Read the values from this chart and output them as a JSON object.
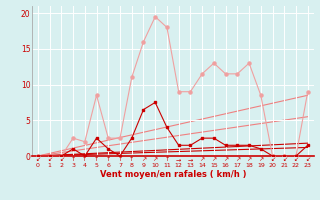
{
  "background_color": "#d8f0f0",
  "grid_color": "#ffffff",
  "x_label": "Vent moyen/en rafales ( km/h )",
  "x_ticks": [
    0,
    1,
    2,
    3,
    4,
    5,
    6,
    7,
    8,
    9,
    10,
    11,
    12,
    13,
    14,
    15,
    16,
    17,
    18,
    19,
    20,
    21,
    22,
    23
  ],
  "ylim": [
    0,
    21
  ],
  "y_ticks": [
    0,
    5,
    10,
    15,
    20
  ],
  "xlim": [
    -0.5,
    23.5
  ],
  "line_light_markers": [
    0,
    0,
    0,
    2.5,
    2,
    8.5,
    2.5,
    2.5,
    11,
    16,
    19.5,
    18,
    9,
    9,
    11.5,
    13,
    11.5,
    11.5,
    13,
    8.5,
    0,
    0,
    0,
    9
  ],
  "line_light_color": "#f0a0a0",
  "line_dark_markers": [
    0,
    0,
    0,
    1,
    0,
    2.5,
    1,
    0,
    2.5,
    6.5,
    7.5,
    4,
    1.5,
    1.5,
    2.5,
    2.5,
    1.5,
    1.5,
    1.5,
    1,
    0,
    0,
    0,
    1.5
  ],
  "line_dark_color": "#cc0000",
  "trend_lines": [
    {
      "x": [
        0,
        23
      ],
      "y": [
        0,
        8.5
      ],
      "color": "#f08080",
      "lw": 0.8
    },
    {
      "x": [
        0,
        23
      ],
      "y": [
        0,
        5.5
      ],
      "color": "#f08080",
      "lw": 0.8
    },
    {
      "x": [
        0,
        23
      ],
      "y": [
        0,
        1.8
      ],
      "color": "#cc0000",
      "lw": 0.8
    },
    {
      "x": [
        0,
        23
      ],
      "y": [
        0,
        1.2
      ],
      "color": "#cc0000",
      "lw": 0.8
    }
  ],
  "arrow_syms": [
    "↙",
    "↙",
    "↙",
    "↑",
    "↑",
    "↑",
    "↑",
    "↑",
    "↑",
    "↗",
    "↗",
    "↑",
    "→",
    "→",
    "↗",
    "↗",
    "↗",
    "↗",
    "↗",
    "↗",
    "↙",
    "↙",
    "↙",
    "↙"
  ]
}
